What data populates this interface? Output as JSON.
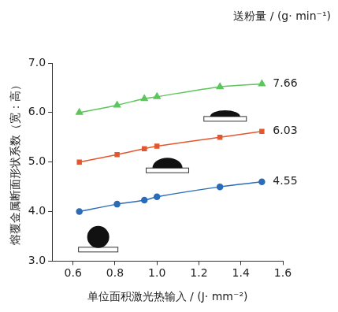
{
  "chart_data": {
    "type": "line",
    "legend_title": "送粉量 / (g· min⁻¹)",
    "x_label": "单位面积激光热输入 / (J· mm⁻²)",
    "y_label": "熔覆金属断面形状系数（宽：高）",
    "x": [
      0.63,
      0.81,
      0.94,
      1.0,
      1.3,
      1.5
    ],
    "series": [
      {
        "name": "7.66",
        "color": "#5cc55c",
        "marker": "triangle",
        "line_style": "solid",
        "values": [
          6.0,
          6.15,
          6.28,
          6.32,
          6.52,
          6.58
        ]
      },
      {
        "name": "6.03",
        "color": "#e4572e",
        "marker": "square",
        "line_style": "solid",
        "values": [
          5.0,
          5.15,
          5.27,
          5.32,
          5.5,
          5.62
        ]
      },
      {
        "name": "4.55",
        "color": "#2b6cb8",
        "marker": "circle",
        "line_style": "solid",
        "values": [
          4.0,
          4.15,
          4.23,
          4.3,
          4.5,
          4.6
        ]
      }
    ],
    "xlim": [
      0.5,
      1.6
    ],
    "xticks": [
      0.6,
      0.8,
      {
        "value": 1,
        "label": "1.0"
      },
      1.2,
      1.4,
      1.6
    ],
    "ylim": [
      3,
      7
    ],
    "yticks": [
      {
        "value": 3,
        "label": "3.0"
      },
      {
        "value": 4,
        "label": "4.0"
      },
      {
        "value": 5,
        "label": "5.0"
      },
      {
        "value": 6,
        "label": "6.0"
      },
      {
        "value": 7,
        "label": "7.0"
      }
    ],
    "grid": false
  }
}
